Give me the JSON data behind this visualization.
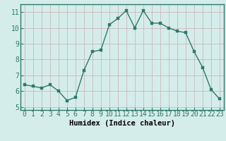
{
  "x": [
    0,
    1,
    2,
    3,
    4,
    5,
    6,
    7,
    8,
    9,
    10,
    11,
    12,
    13,
    14,
    15,
    16,
    17,
    18,
    19,
    20,
    21,
    22,
    23
  ],
  "y": [
    6.4,
    6.3,
    6.2,
    6.4,
    6.0,
    5.4,
    5.6,
    7.3,
    8.5,
    8.6,
    10.2,
    10.6,
    11.1,
    10.0,
    11.1,
    10.3,
    10.3,
    10.0,
    9.8,
    9.7,
    8.5,
    7.5,
    6.1,
    5.5
  ],
  "line_color": "#2d7a6a",
  "marker_color": "#2d7a6a",
  "bg_color": "#d5edea",
  "grid_color": "#c8b8b8",
  "xlabel": "Humidex (Indice chaleur)",
  "ylabel_ticks": [
    5,
    6,
    7,
    8,
    9,
    10,
    11
  ],
  "xlim": [
    -0.5,
    23.5
  ],
  "ylim": [
    4.8,
    11.5
  ],
  "xlabel_fontsize": 7.5,
  "tick_fontsize": 7,
  "line_width": 1.0,
  "marker_size": 2.5
}
